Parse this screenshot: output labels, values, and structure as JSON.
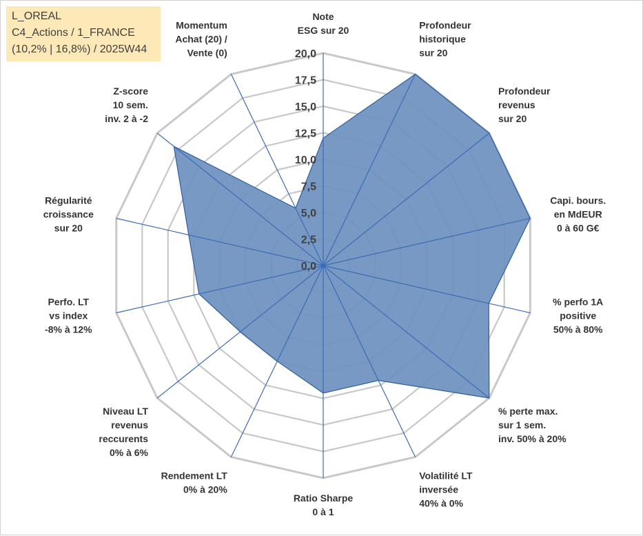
{
  "info_box": {
    "line1": "L_OREAL",
    "line2": "C4_Actions / 1_FRANCE",
    "line3": "(10,2% | 16,8%) / 2025W44"
  },
  "colors": {
    "fill": "#6b90bf",
    "stroke": "#2e5ea0",
    "grid": "#c8c8c8",
    "spoke": "#3b6bb5",
    "info_bg": "#fde9b8"
  },
  "chart_data": {
    "type": "radar",
    "title": "",
    "range": [
      0,
      20
    ],
    "grid_step": 2.5,
    "tick_labels": [
      "0,0",
      "2,5",
      "5,0",
      "7,5",
      "10,0",
      "12,5",
      "15,0",
      "17,5",
      "20,0"
    ],
    "axes": [
      {
        "label": [
          "Note",
          "ESG sur 20"
        ],
        "value": 12.0
      },
      {
        "label": [
          "Profondeur",
          "historique",
          "sur 20"
        ],
        "value": 20.0
      },
      {
        "label": [
          "Profondeur",
          "revenus",
          "sur 20"
        ],
        "value": 20.0
      },
      {
        "label": [
          "Capi. bours.",
          "en MdEUR",
          "0 à 60 G€"
        ],
        "value": 20.0
      },
      {
        "label": [
          "% perfo 1A",
          "positive",
          "50% à 80%"
        ],
        "value": 16.0
      },
      {
        "label": [
          "% perte max.",
          "sur 1 sem.",
          "inv. 50% à 20%"
        ],
        "value": 20.0
      },
      {
        "label": [
          "Volatilité LT",
          "inversée",
          "40% à 0%"
        ],
        "value": 12.0
      },
      {
        "label": [
          "Ratio Sharpe",
          "0 à 1"
        ],
        "value": 12.0
      },
      {
        "label": [
          "Rendement LT",
          "0% à 20%"
        ],
        "value": 10.0
      },
      {
        "label": [
          "Niveau LT",
          "revenus",
          "reccurents",
          "0% à 6%"
        ],
        "value": 10.0
      },
      {
        "label": [
          "Perfo. LT",
          "vs index",
          "-8% à 12%"
        ],
        "value": 12.0
      },
      {
        "label": [
          "Régularité",
          "croissance",
          "sur 20"
        ],
        "value": 13.0
      },
      {
        "label": [
          "Z-score",
          "10 sem.",
          "inv. 2 à -2"
        ],
        "value": 18.0
      },
      {
        "label": [
          "Momentum",
          "Achat (20) /",
          "Vente (0)"
        ],
        "value": 6.0
      }
    ]
  }
}
